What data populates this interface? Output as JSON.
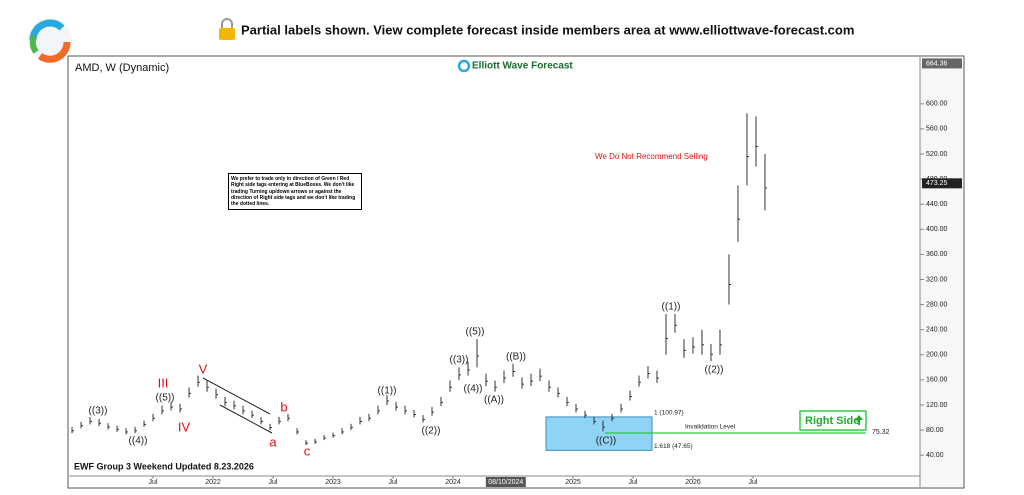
{
  "header": {
    "notice": "Partial labels shown. View complete forecast inside members area at www.elliottwave-forecast.com"
  },
  "chart_data": {
    "type": "candlestick",
    "title": "AMD, W (Dynamic)",
    "brand": "Elliott Wave Forecast",
    "footer": "EWF Group 3 Weekend Updated 8.23.2026",
    "note": "We prefer to trade only in direction of Green / Red Right side tags entering at BlueBoxes. We don't like trading Turning up/down arrows or against the direction of Right side tags and we don't like trading the dotted lines.",
    "annotation": "We Do Not Recommend Selling",
    "signal": "Right Side",
    "color": "#333333",
    "x": [
      2020.825,
      2020.9,
      2020.975,
      2021.05,
      2021.125,
      2021.2,
      2021.275,
      2021.35,
      2021.425,
      2021.5,
      2021.575,
      2021.65,
      2021.725,
      2021.8,
      2021.875,
      2021.95,
      2022.025,
      2022.1,
      2022.175,
      2022.25,
      2022.325,
      2022.4,
      2022.475,
      2022.55,
      2022.625,
      2022.7,
      2022.775,
      2022.85,
      2022.925,
      2023.0,
      2023.075,
      2023.15,
      2023.225,
      2023.3,
      2023.375,
      2023.45,
      2023.525,
      2023.6,
      2023.675,
      2023.75,
      2023.825,
      2023.9,
      2023.975,
      2024.05,
      2024.125,
      2024.2,
      2024.275,
      2024.35,
      2024.425,
      2024.5,
      2024.575,
      2024.65,
      2024.725,
      2024.8,
      2024.875,
      2024.95,
      2025.025,
      2025.1,
      2025.175,
      2025.25,
      2025.325,
      2025.4,
      2025.475,
      2025.55,
      2025.625,
      2025.7,
      2025.775,
      2025.85,
      2025.925,
      2026.0,
      2026.075,
      2026.15,
      2026.225,
      2026.3,
      2026.375,
      2026.45,
      2026.525,
      2026.6
    ],
    "high": [
      85,
      93,
      101,
      98,
      91,
      87,
      83,
      85,
      95,
      106,
      119,
      125,
      122,
      148,
      167,
      159,
      146,
      133,
      127,
      119,
      111,
      101,
      90,
      101,
      106,
      83,
      64,
      66,
      72,
      76,
      83,
      90,
      101,
      106,
      119,
      136,
      125,
      119,
      112,
      104,
      117,
      133,
      159,
      180,
      189,
      225,
      170,
      159,
      175,
      186,
      164,
      170,
      178,
      159,
      148,
      133,
      122,
      111,
      101,
      95,
      106,
      122,
      143,
      167,
      182,
      175,
      265,
      265,
      225,
      228,
      240,
      217,
      240,
      360,
      470,
      585,
      580,
      520
    ],
    "low": [
      75,
      83,
      89,
      86,
      81,
      77,
      73,
      75,
      85,
      94,
      105,
      111,
      108,
      132,
      149,
      141,
      130,
      118,
      113,
      105,
      99,
      89,
      80,
      89,
      94,
      73,
      56,
      58,
      64,
      68,
      73,
      80,
      89,
      94,
      105,
      120,
      111,
      105,
      100,
      92,
      103,
      118,
      141,
      160,
      167,
      180,
      150,
      141,
      155,
      165,
      146,
      150,
      158,
      141,
      132,
      118,
      108,
      99,
      89,
      78,
      94,
      108,
      127,
      149,
      162,
      155,
      200,
      235,
      195,
      202,
      200,
      190,
      200,
      280,
      380,
      470,
      500,
      430
    ],
    "xlim": [
      2020.808,
      2027.892
    ],
    "xticks": [
      {
        "value": 2021.5,
        "label": "Jul"
      },
      2022,
      {
        "value": 2022.5,
        "label": "Jul"
      },
      2023,
      {
        "value": 2023.5,
        "label": "Jul"
      },
      2024,
      {
        "value": 2024.44,
        "label": "08/10/2024"
      },
      2025,
      {
        "value": 2025.5,
        "label": "Jul"
      },
      2026,
      {
        "value": 2026.5,
        "label": "Jul"
      }
    ],
    "ylim": [
      10,
      673
    ],
    "yticks": [
      {
        "value": 40,
        "label": "40.00"
      },
      {
        "value": 80,
        "label": "80.00"
      },
      {
        "value": 120,
        "label": "120.00"
      },
      {
        "value": 160,
        "label": "160.00"
      },
      {
        "value": 200,
        "label": "200.00"
      },
      {
        "value": 240,
        "label": "240.00"
      },
      {
        "value": 280,
        "label": "280.00"
      },
      {
        "value": 320,
        "label": "320.00"
      },
      {
        "value": 360,
        "label": "360.00"
      },
      {
        "value": 400,
        "label": "400.00"
      },
      {
        "value": 440,
        "label": "440.00"
      },
      {
        "value": 480,
        "label": "480.00"
      },
      {
        "value": 520,
        "label": "520.00"
      },
      {
        "value": 560,
        "label": "560.00"
      },
      {
        "value": 600,
        "label": "600.00"
      }
    ],
    "top_price": 664.36,
    "last_price": 473.25,
    "box": {
      "color": "#8fd3f5",
      "levels": [
        {
          "value": 100.97,
          "label": "1 (100.97)"
        },
        {
          "value": 47.65,
          "label": "1.618 (47.65)"
        }
      ]
    },
    "invalidation": {
      "label": "Invalidation Level",
      "value": 75.32,
      "color": "#2ecc40"
    },
    "waves": [
      {
        "label": "((3))",
        "color": "#222222"
      },
      {
        "label": "((4))",
        "color": "#222222"
      },
      {
        "label": "((5))",
        "color": "#222222"
      },
      {
        "label": "III",
        "color": "#e01010"
      },
      {
        "label": "IV",
        "color": "#e01010"
      },
      {
        "label": "V",
        "color": "#e01010"
      },
      {
        "label": "a",
        "color": "#e01010"
      },
      {
        "label": "b",
        "color": "#e01010"
      },
      {
        "label": "c",
        "color": "#e01010"
      },
      {
        "label": "((1))",
        "color": "#222222"
      },
      {
        "label": "((2))",
        "color": "#222222"
      },
      {
        "label": "((3))",
        "color": "#222222"
      },
      {
        "label": "((4))",
        "color": "#222222"
      },
      {
        "label": "((5))",
        "color": "#222222"
      },
      {
        "label": "((A))",
        "color": "#222222"
      },
      {
        "label": "((B))",
        "color": "#222222"
      },
      {
        "label": "((C))",
        "color": "#222222"
      },
      {
        "label": "((1))",
        "color": "#222222"
      },
      {
        "label": "((2))",
        "color": "#222222"
      }
    ]
  }
}
